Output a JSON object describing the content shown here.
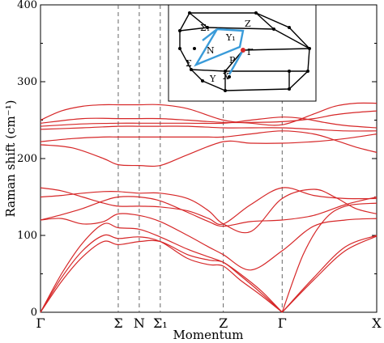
{
  "chart_data": {
    "type": "line",
    "xlabel": "Momentum",
    "ylabel": "Raman shift (cm⁻¹)",
    "ylim": [
      0,
      400
    ],
    "yticks": [
      0,
      100,
      200,
      300,
      400
    ],
    "grid": false,
    "legend": "none",
    "line_color": "#d62728",
    "path_points": [
      {
        "label": "Γ",
        "x": 0
      },
      {
        "label": "Σ",
        "x": 0.37
      },
      {
        "label": "N",
        "x": 0.47
      },
      {
        "label": "Σ₁",
        "x": 0.57
      },
      {
        "label": "Z",
        "x": 0.87
      },
      {
        "label": "Γ",
        "x": 1.15
      },
      {
        "label": "X",
        "x": 1.6
      }
    ],
    "xlim": [
      0,
      1.6
    ],
    "series": [
      {
        "x": [
          0,
          0.1,
          0.2,
          0.3,
          0.37,
          0.47,
          0.57,
          0.7,
          0.87,
          1.0,
          1.15,
          1.3,
          1.4,
          1.5,
          1.6
        ],
        "values": [
          250,
          262,
          268,
          270,
          270,
          270,
          270,
          265,
          250,
          246,
          244,
          258,
          268,
          272,
          272
        ]
      },
      {
        "x": [
          0,
          0.2,
          0.37,
          0.47,
          0.57,
          0.7,
          0.87,
          1.0,
          1.15,
          1.3,
          1.4,
          1.5,
          1.6
        ],
        "values": [
          246,
          252,
          252,
          252,
          252,
          250,
          247,
          247,
          248,
          252,
          257,
          260,
          262
        ]
      },
      {
        "x": [
          0,
          0.2,
          0.37,
          0.47,
          0.57,
          0.7,
          0.87,
          1.0,
          1.15,
          1.25,
          1.35,
          1.45,
          1.6
        ],
        "values": [
          242,
          245,
          246,
          246,
          246,
          246,
          246,
          250,
          254,
          252,
          247,
          243,
          240
        ]
      },
      {
        "x": [
          0,
          0.2,
          0.37,
          0.47,
          0.57,
          0.7,
          0.87,
          1.0,
          1.15,
          1.3,
          1.45,
          1.6
        ],
        "values": [
          238,
          240,
          242,
          242,
          242,
          242,
          240,
          240,
          240,
          238,
          236,
          236
        ]
      },
      {
        "x": [
          0,
          0.15,
          0.3,
          0.37,
          0.47,
          0.57,
          0.7,
          0.8,
          0.87,
          1.0,
          1.15,
          1.3,
          1.4,
          1.5,
          1.6
        ],
        "values": [
          222,
          226,
          228,
          228,
          228,
          228,
          228,
          228,
          228,
          232,
          236,
          232,
          224,
          215,
          208
        ]
      },
      {
        "x": [
          0,
          0.15,
          0.3,
          0.37,
          0.47,
          0.57,
          0.7,
          0.87,
          1.0,
          1.15,
          1.3,
          1.45,
          1.6
        ],
        "values": [
          218,
          214,
          200,
          192,
          191,
          191,
          205,
          222,
          220,
          220,
          222,
          226,
          232
        ]
      },
      {
        "x": [
          0,
          0.1,
          0.2,
          0.3,
          0.37,
          0.47,
          0.57,
          0.7,
          0.8,
          0.87,
          1.0,
          1.15,
          1.3,
          1.45,
          1.6
        ],
        "values": [
          162,
          158,
          150,
          142,
          138,
          138,
          137,
          132,
          122,
          115,
          140,
          162,
          152,
          148,
          148
        ]
      },
      {
        "x": [
          0,
          0.1,
          0.2,
          0.3,
          0.37,
          0.47,
          0.57,
          0.7,
          0.8,
          0.87,
          1.0,
          1.15,
          1.3,
          1.4,
          1.5,
          1.6
        ],
        "values": [
          150,
          152,
          155,
          157,
          157,
          155,
          155,
          148,
          132,
          115,
          105,
          148,
          160,
          150,
          135,
          128
        ]
      },
      {
        "x": [
          0,
          0.1,
          0.2,
          0.3,
          0.37,
          0.47,
          0.57,
          0.7,
          0.8,
          0.87,
          1.0,
          1.15,
          1.3,
          1.45,
          1.6
        ],
        "values": [
          120,
          127,
          135,
          145,
          150,
          150,
          145,
          130,
          118,
          112,
          118,
          120,
          126,
          140,
          150
        ]
      },
      {
        "x": [
          0,
          0.1,
          0.2,
          0.3,
          0.37,
          0.47,
          0.57,
          0.7,
          0.8,
          0.87,
          1.0,
          1.15,
          1.3,
          1.45,
          1.6
        ],
        "values": [
          120,
          122,
          115,
          118,
          128,
          126,
          118,
          100,
          85,
          75,
          55,
          80,
          112,
          120,
          122
        ]
      },
      {
        "x": [
          0,
          0.1,
          0.2,
          0.3,
          0.37,
          0.47,
          0.57,
          0.7,
          0.8,
          0.87,
          0.95,
          1.05,
          1.15
        ],
        "values": [
          0,
          50,
          90,
          115,
          110,
          108,
          98,
          82,
          72,
          65,
          50,
          28,
          0
        ]
      },
      {
        "x": [
          0,
          0.1,
          0.2,
          0.3,
          0.37,
          0.47,
          0.57,
          0.7,
          0.8,
          0.87,
          0.95,
          1.05,
          1.15
        ],
        "values": [
          0,
          45,
          80,
          100,
          96,
          98,
          92,
          70,
          62,
          60,
          42,
          22,
          0
        ]
      },
      {
        "x": [
          0,
          0.1,
          0.2,
          0.3,
          0.37,
          0.47,
          0.57,
          0.7,
          0.8,
          0.87,
          0.95,
          1.05,
          1.15
        ],
        "values": [
          0,
          40,
          72,
          92,
          88,
          92,
          92,
          75,
          68,
          65,
          48,
          25,
          0
        ]
      },
      {
        "x": [
          1.15,
          1.3,
          1.45,
          1.6
        ],
        "values": [
          0,
          45,
          85,
          100
        ]
      },
      {
        "x": [
          1.15,
          1.3,
          1.45,
          1.6
        ],
        "values": [
          0,
          42,
          80,
          99
        ]
      },
      {
        "x": [
          1.15,
          1.25,
          1.35,
          1.45,
          1.6
        ],
        "values": [
          0,
          75,
          120,
          138,
          142
        ]
      }
    ]
  },
  "inset": {
    "labels": {
      "sigma1": "Σ₁",
      "y1": "Y₁",
      "z": "Z",
      "n": "N",
      "p": "P",
      "gamma": "Γ",
      "sigma": "Σ",
      "y": "Y",
      "x": "X"
    }
  }
}
